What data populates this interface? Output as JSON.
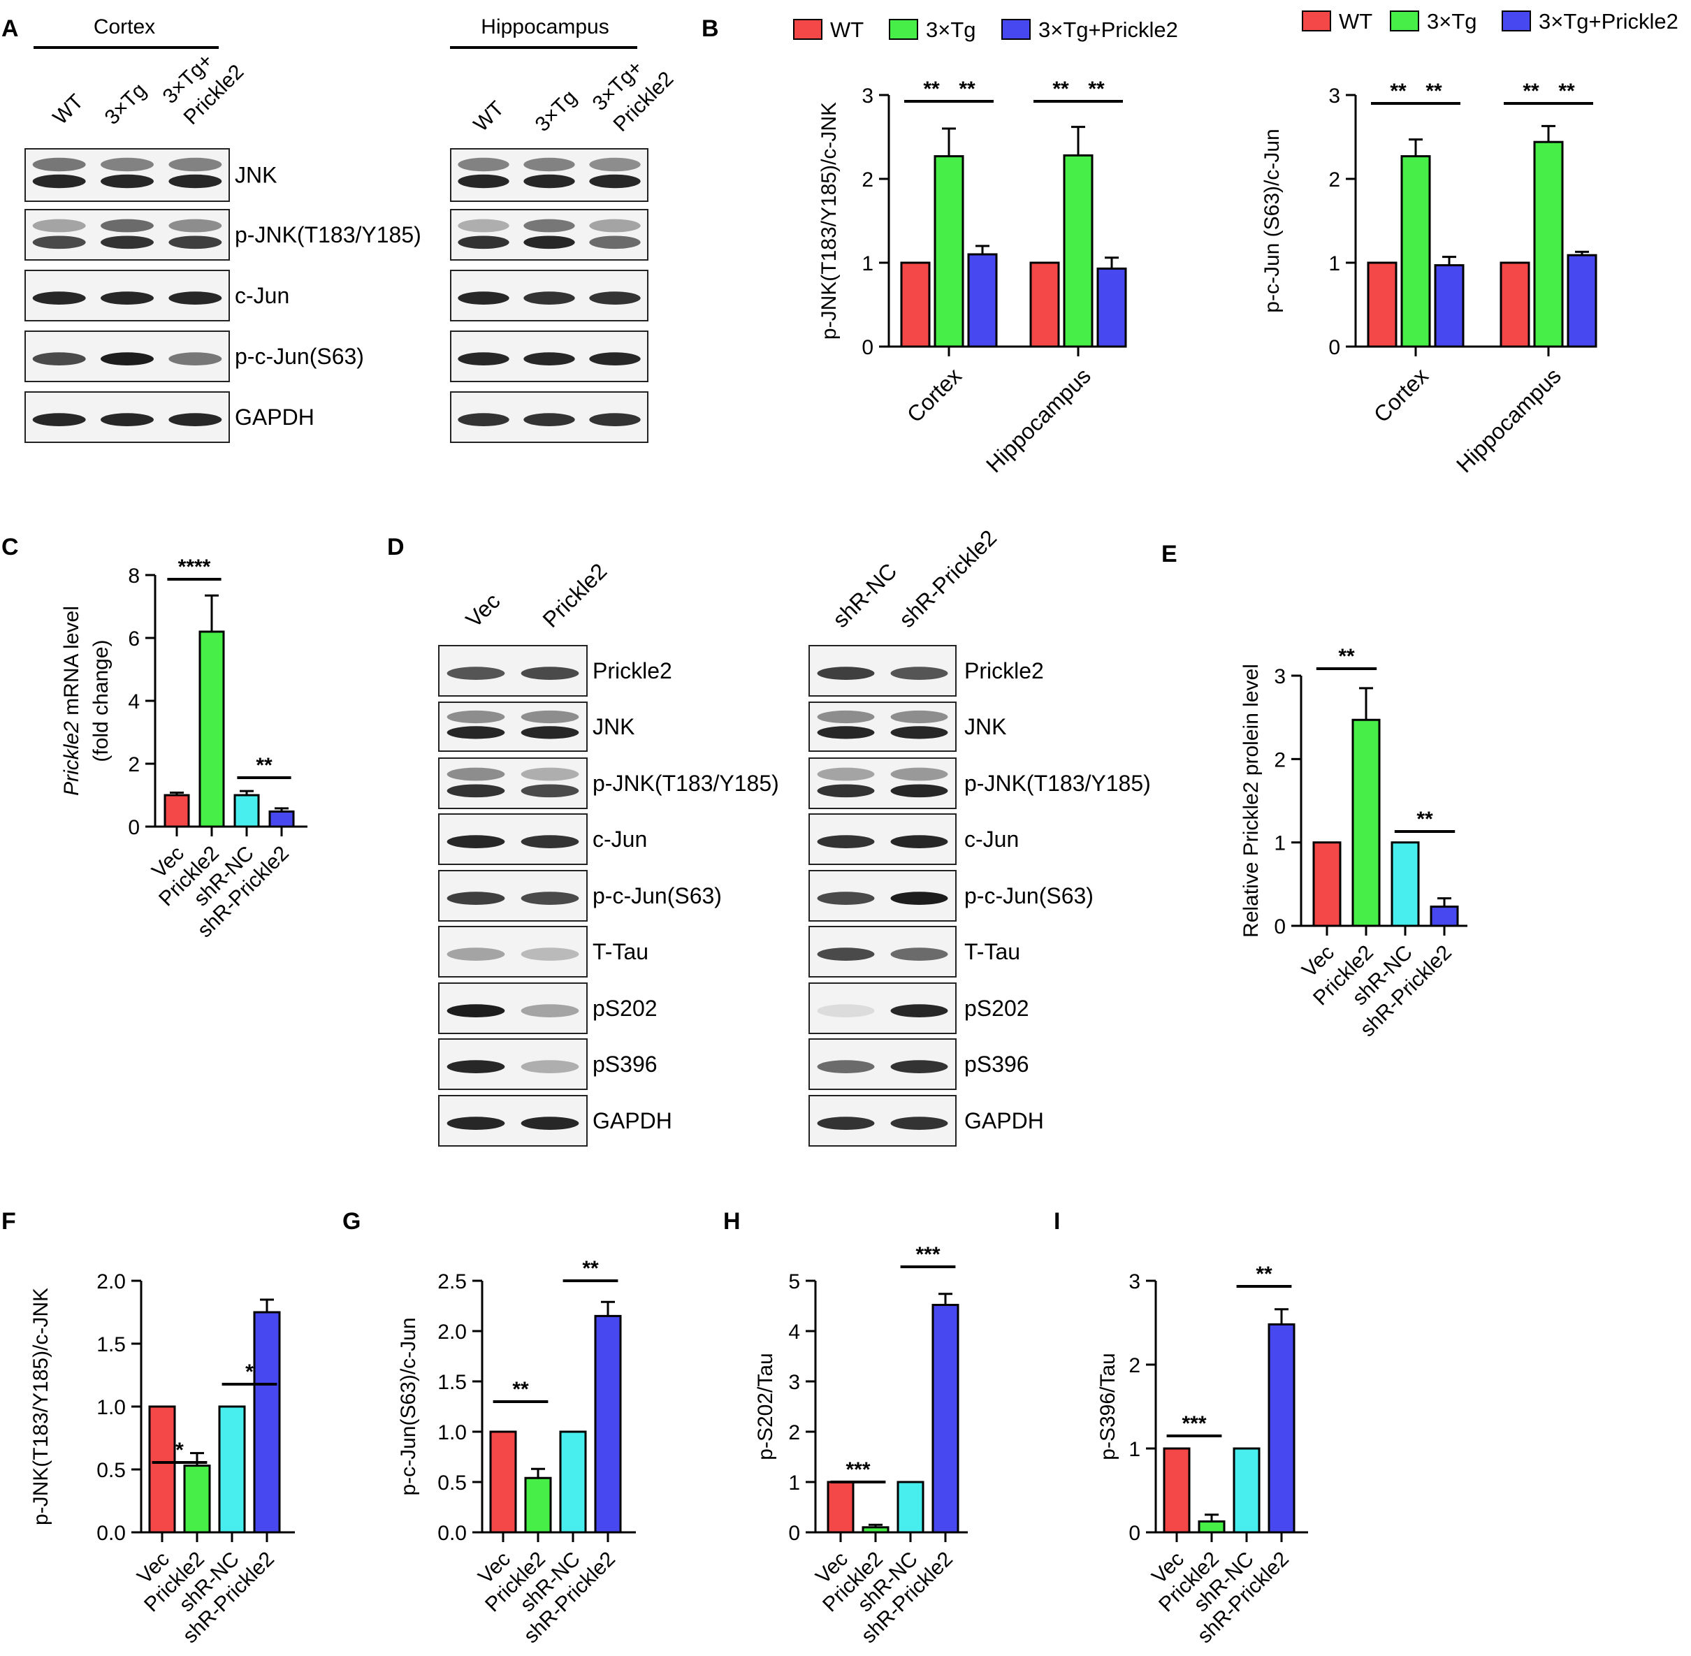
{
  "colors": {
    "wt": "#f44848",
    "tg": "#48ee48",
    "tgp": "#4848f0",
    "vec": "#f44848",
    "pk": "#48ee48",
    "nc": "#48eeee",
    "sh": "#4848f0",
    "axis": "#000000"
  },
  "panel_letters": {
    "A": "A",
    "B": "B",
    "C": "C",
    "D": "D",
    "E": "E",
    "F": "F",
    "G": "G",
    "H": "H",
    "I": "I"
  },
  "blot_A": {
    "cortex": {
      "title": "Cortex",
      "lanes": [
        "WT",
        "3×Tg",
        "3×Tg+ Prickle2"
      ]
    },
    "hippocampus": {
      "title": "Hippocampus",
      "lanes": [
        "WT",
        "3×Tg",
        "3×Tg+ Prickle2"
      ]
    },
    "bands": [
      "JNK",
      "p-JNK(T183/Y185)",
      "c-Jun",
      "p-c-Jun(S63)",
      "GAPDH"
    ]
  },
  "blot_D": {
    "left_lanes": [
      "Vec",
      "Prickle2"
    ],
    "right_lanes": [
      "shR-NC",
      "shR-Prickle2"
    ],
    "bands": [
      "Prickle2",
      "JNK",
      "p-JNK(T183/Y185)",
      "c-Jun",
      "p-c-Jun(S63)",
      "T-Tau",
      "pS202",
      "pS396",
      "GAPDH"
    ]
  },
  "chart_data": [
    {
      "id": "B1",
      "type": "bar",
      "categories": [
        "Cortex",
        "Hippocampus"
      ],
      "series": [
        {
          "name": "WT",
          "values": [
            1.0,
            1.0
          ],
          "err": [
            0,
            0
          ]
        },
        {
          "name": "3×Tg",
          "values": [
            2.27,
            2.28
          ],
          "err": [
            0.33,
            0.34
          ]
        },
        {
          "name": "3×Tg+Prickle2",
          "values": [
            1.1,
            0.93
          ],
          "err": [
            0.1,
            0.13
          ]
        }
      ],
      "ylabel": "p-JNK(T183/Y185)/c-JNK",
      "ylim": [
        0,
        3
      ],
      "yticks": [
        "0",
        "1",
        "2",
        "3"
      ],
      "sig": [
        "**",
        "**",
        "**",
        "**"
      ],
      "legend": "top"
    },
    {
      "id": "B2",
      "type": "bar",
      "categories": [
        "Cortex",
        "Hippocampus"
      ],
      "series": [
        {
          "name": "WT",
          "values": [
            1.0,
            1.0
          ],
          "err": [
            0,
            0
          ]
        },
        {
          "name": "3×Tg",
          "values": [
            2.27,
            2.44
          ],
          "err": [
            0.2,
            0.19
          ]
        },
        {
          "name": "3×Tg+Prickle2",
          "values": [
            0.97,
            1.09
          ],
          "err": [
            0.1,
            0.04
          ]
        }
      ],
      "ylabel": "p-c-Jun (S63)/c-Jun",
      "ylim": [
        0,
        3
      ],
      "yticks": [
        "0",
        "1",
        "2",
        "3"
      ],
      "sig": [
        "**",
        "**",
        "**",
        "**"
      ],
      "legend": "top"
    },
    {
      "id": "C",
      "type": "bar",
      "categories": [
        "Vec",
        "Prickle2",
        "shR-NC",
        "shR-Prickle2"
      ],
      "values": [
        1.0,
        6.2,
        1.0,
        0.48
      ],
      "err": [
        0.08,
        1.15,
        0.13,
        0.1
      ],
      "ylabel_italic": "Prickle2",
      "ylabel_rest": " mRNA level",
      "ylabel2": "(fold change)",
      "ylim": [
        0,
        8
      ],
      "yticks": [
        "0",
        "2",
        "4",
        "6",
        "8"
      ],
      "sig": [
        "****",
        "**"
      ]
    },
    {
      "id": "E",
      "type": "bar",
      "categories": [
        "Vec",
        "Prickle2",
        "shR-NC",
        "shR-Prickle2"
      ],
      "values": [
        1.0,
        2.47,
        1.0,
        0.23
      ],
      "err": [
        0,
        0.38,
        0,
        0.1
      ],
      "ylabel": "Relative Prickle2 prolein level",
      "ylim": [
        0,
        3
      ],
      "yticks": [
        "0",
        "1",
        "2",
        "3"
      ],
      "sig": [
        "**",
        "**"
      ]
    },
    {
      "id": "F",
      "type": "bar",
      "categories": [
        "Vec",
        "Prickle2",
        "shR-NC",
        "shR-Prickle2"
      ],
      "values": [
        1.0,
        0.53,
        1.0,
        1.75
      ],
      "err": [
        0,
        0.1,
        0,
        0.1
      ],
      "ylabel": "p-JNK(T183/Y185)/c-JNK",
      "ylim": [
        0,
        2
      ],
      "yticks": [
        "0.0",
        "0.5",
        "1.0",
        "1.5",
        "2.0"
      ],
      "sig": [
        "*",
        "*"
      ]
    },
    {
      "id": "G",
      "type": "bar",
      "categories": [
        "Vec",
        "Prickle2",
        "shR-NC",
        "shR-Prickle2"
      ],
      "values": [
        1.0,
        0.54,
        1.0,
        2.15
      ],
      "err": [
        0,
        0.09,
        0,
        0.14
      ],
      "ylabel": "p-c-Jun(S63)/c-Jun",
      "ylim": [
        0,
        2.5
      ],
      "yticks": [
        "0.0",
        "0.5",
        "1.0",
        "1.5",
        "2.0",
        "2.5"
      ],
      "sig": [
        "**",
        "**"
      ]
    },
    {
      "id": "H",
      "type": "bar",
      "categories": [
        "Vec",
        "Prickle2",
        "shR-NC",
        "shR-Prickle2"
      ],
      "values": [
        1.0,
        0.1,
        1.0,
        4.52
      ],
      "err": [
        0,
        0.05,
        0,
        0.22
      ],
      "ylabel": "p-S202/Tau",
      "ylim": [
        0,
        5
      ],
      "yticks": [
        "0",
        "1",
        "2",
        "3",
        "4",
        "5"
      ],
      "sig": [
        "***",
        "***"
      ]
    },
    {
      "id": "I",
      "type": "bar",
      "categories": [
        "Vec",
        "Prickle2",
        "shR-NC",
        "shR-Prickle2"
      ],
      "values": [
        1.0,
        0.13,
        1.0,
        2.48
      ],
      "err": [
        0,
        0.08,
        0,
        0.18
      ],
      "ylabel": "p-S396/Tau",
      "ylim": [
        0,
        3
      ],
      "yticks": [
        "0",
        "1",
        "2",
        "3"
      ],
      "sig": [
        "***",
        "**"
      ]
    }
  ]
}
